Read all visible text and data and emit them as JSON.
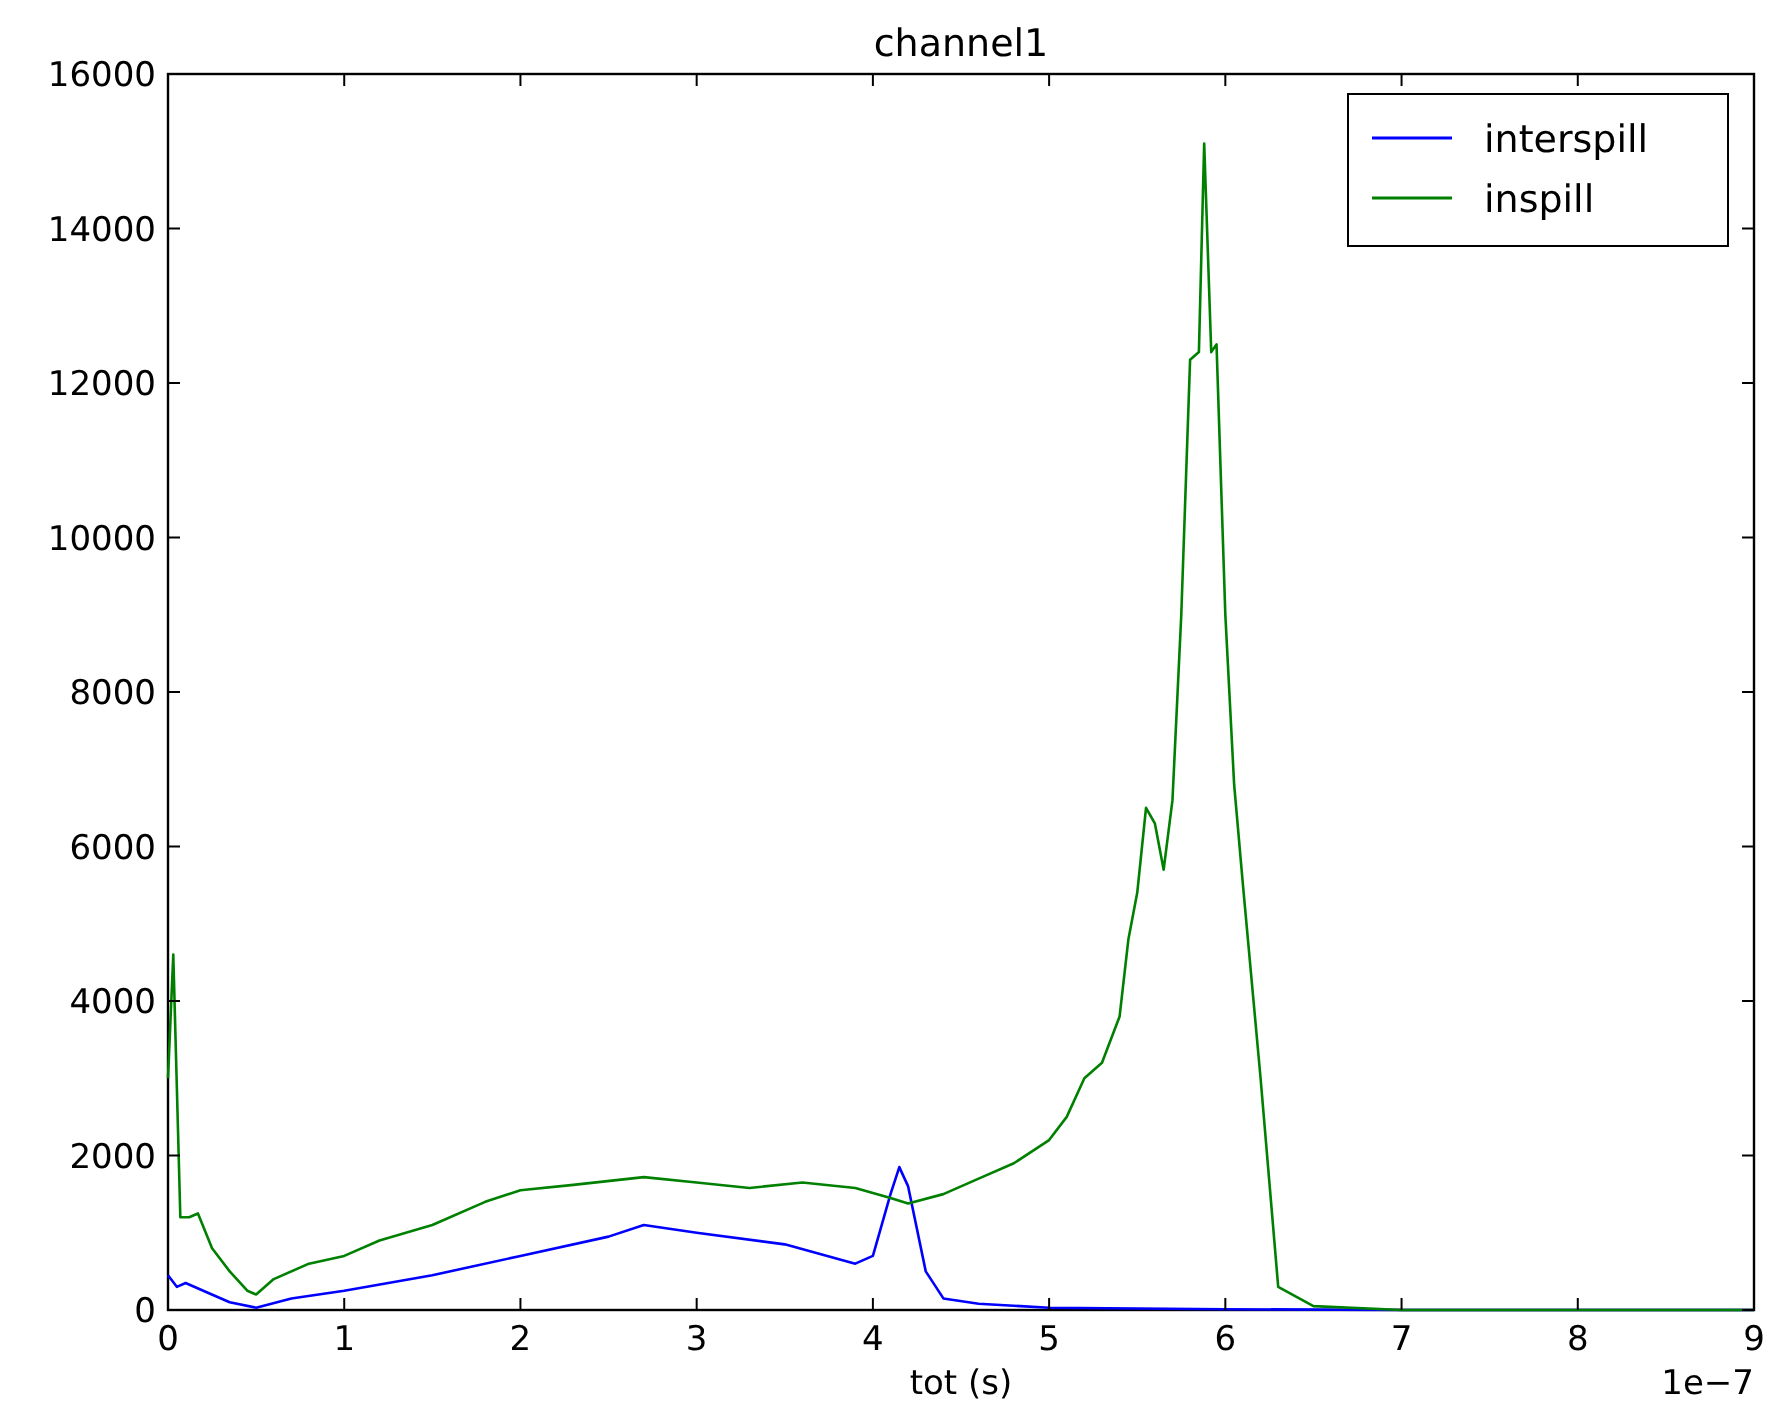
{
  "chart_data": {
    "type": "line",
    "title": "channel1",
    "xlabel": "tot (s)",
    "annotations": [
      "1e−7"
    ],
    "xlim": [
      0,
      9
    ],
    "ylim": [
      0,
      16000
    ],
    "xticks": [
      0,
      1,
      2,
      3,
      4,
      5,
      6,
      7,
      8,
      9
    ],
    "yticks": [
      0,
      2000,
      4000,
      6000,
      8000,
      10000,
      12000,
      14000,
      16000
    ],
    "legend": "top right",
    "grid": false,
    "series": [
      {
        "name": "interspill",
        "color": "#0000ff",
        "x": [
          0,
          0.05,
          0.1,
          0.2,
          0.35,
          0.5,
          0.7,
          1.0,
          1.5,
          2.0,
          2.5,
          2.7,
          3.0,
          3.5,
          3.9,
          4.0,
          4.1,
          4.15,
          4.2,
          4.3,
          4.4,
          4.6,
          5.0,
          6.0,
          7.0,
          9.0
        ],
        "values": [
          450,
          300,
          350,
          250,
          100,
          30,
          150,
          250,
          450,
          700,
          950,
          1100,
          1000,
          850,
          600,
          700,
          1500,
          1850,
          1600,
          500,
          150,
          80,
          30,
          10,
          0,
          0
        ]
      },
      {
        "name": "inspill",
        "color": "#008000",
        "x": [
          0,
          0.03,
          0.07,
          0.12,
          0.17,
          0.25,
          0.35,
          0.45,
          0.5,
          0.6,
          0.8,
          1.0,
          1.2,
          1.5,
          1.8,
          2.0,
          2.3,
          2.7,
          3.0,
          3.3,
          3.6,
          3.9,
          4.1,
          4.2,
          4.4,
          4.6,
          4.8,
          5.0,
          5.1,
          5.2,
          5.3,
          5.4,
          5.45,
          5.5,
          5.55,
          5.6,
          5.65,
          5.7,
          5.75,
          5.8,
          5.85,
          5.88,
          5.92,
          5.95,
          6.0,
          6.05,
          6.1,
          6.2,
          6.3,
          6.5,
          7.0,
          9.0
        ],
        "values": [
          3000,
          4600,
          1200,
          1200,
          1250,
          800,
          500,
          250,
          200,
          400,
          600,
          700,
          900,
          1100,
          1400,
          1550,
          1620,
          1720,
          1650,
          1580,
          1650,
          1580,
          1450,
          1380,
          1500,
          1700,
          1900,
          2200,
          2500,
          3000,
          3200,
          3800,
          4800,
          5400,
          6500,
          6300,
          5700,
          6600,
          9000,
          12300,
          12400,
          15100,
          12400,
          12500,
          9000,
          6800,
          5500,
          3000,
          300,
          50,
          0,
          0
        ]
      }
    ]
  }
}
